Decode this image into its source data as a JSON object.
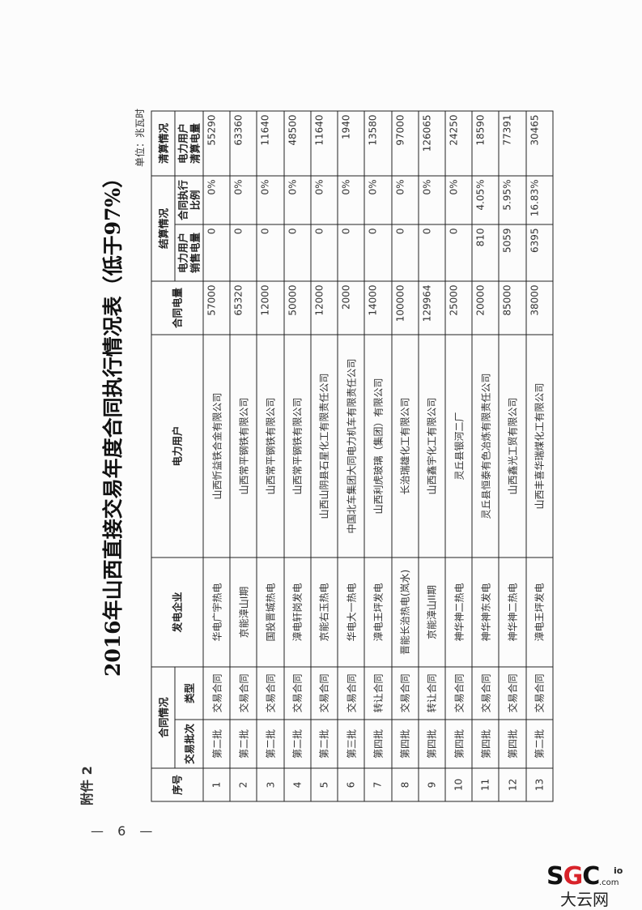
{
  "attachment_label": "附件 2",
  "page_number": "— 6 —",
  "title": "2016年山西直接交易年度合同执行情况表（低于97%）",
  "unit": "单位：兆瓦时",
  "headers": {
    "seq": "序号",
    "contract_group": "合同情况",
    "batch": "交易批次",
    "type": "类型",
    "generator": "发电企业",
    "customer": "电力用户",
    "contract_volume": "合同电量",
    "settlement_group": "结算情况",
    "sold_volume": "电力用户\n销售电量",
    "exec_ratio": "合同执行\n比例",
    "clearing_group": "清算情况",
    "cleared_volume": "电力用户\n清算电量"
  },
  "rows": [
    {
      "seq": "1",
      "batch": "第二批",
      "type": "交易合同",
      "generator": "华电广宇热电",
      "customer": "山西忻益铁合金有限公司",
      "contract": "57000",
      "sold": "0",
      "ratio": "0%",
      "cleared": "55290"
    },
    {
      "seq": "2",
      "batch": "第二批",
      "type": "交易合同",
      "generator": "京能漳山I期",
      "customer": "山西常平钢铁有限公司",
      "contract": "65320",
      "sold": "0",
      "ratio": "0%",
      "cleared": "63360"
    },
    {
      "seq": "3",
      "batch": "第二批",
      "type": "交易合同",
      "generator": "国投晋城热电",
      "customer": "山西常平钢铁有限公司",
      "contract": "12000",
      "sold": "0",
      "ratio": "0%",
      "cleared": "11640"
    },
    {
      "seq": "4",
      "batch": "第二批",
      "type": "交易合同",
      "generator": "漳电轩岗发电",
      "customer": "山西常平钢铁有限公司",
      "contract": "50000",
      "sold": "0",
      "ratio": "0%",
      "cleared": "48500"
    },
    {
      "seq": "5",
      "batch": "第二批",
      "type": "交易合同",
      "generator": "京能右玉热电",
      "customer": "山西山阴县石星化工有限责任公司",
      "contract": "12000",
      "sold": "0",
      "ratio": "0%",
      "cleared": "11640"
    },
    {
      "seq": "6",
      "batch": "第三批",
      "type": "交易合同",
      "generator": "华电大一热电",
      "customer": "中国北车集团大同电力机车有限责任公司",
      "contract": "2000",
      "sold": "0",
      "ratio": "0%",
      "cleared": "1940"
    },
    {
      "seq": "7",
      "batch": "第四批",
      "type": "转让合同",
      "generator": "漳电王坪发电",
      "customer": "山西利虎玻璃（集团）有限公司",
      "contract": "14000",
      "sold": "0",
      "ratio": "0%",
      "cleared": "13580"
    },
    {
      "seq": "8",
      "batch": "第四批",
      "type": "交易合同",
      "generator": "晋能长治热电(岚水)",
      "customer": "长治瑞雄化工有限公司",
      "contract": "100000",
      "sold": "0",
      "ratio": "0%",
      "cleared": "97000"
    },
    {
      "seq": "9",
      "batch": "第四批",
      "type": "转让合同",
      "generator": "京能漳山II期",
      "customer": "山西鑫宇化工有限公司",
      "contract": "129964",
      "sold": "0",
      "ratio": "0%",
      "cleared": "126065"
    },
    {
      "seq": "10",
      "batch": "第四批",
      "type": "交易合同",
      "generator": "神华神二热电",
      "customer": "灵丘县银河二厂",
      "contract": "25000",
      "sold": "0",
      "ratio": "0%",
      "cleared": "24250"
    },
    {
      "seq": "11",
      "batch": "第四批",
      "type": "交易合同",
      "generator": "神华神东发电",
      "customer": "灵丘县恒泰有色冶炼有限责任公司",
      "contract": "20000",
      "sold": "810",
      "ratio": "4.05%",
      "cleared": "18590"
    },
    {
      "seq": "12",
      "batch": "第四批",
      "type": "交易合同",
      "generator": "神华神二热电",
      "customer": "山西鑫光工贸有限公司",
      "contract": "85000",
      "sold": "5059",
      "ratio": "5.95%",
      "cleared": "77391"
    },
    {
      "seq": "13",
      "batch": "第二批",
      "type": "交易合同",
      "generator": "漳电王坪发电",
      "customer": "山西丰喜华瑞煤化工有限公司",
      "contract": "38000",
      "sold": "6395",
      "ratio": "16.83%",
      "cleared": "30465"
    }
  ],
  "watermark": {
    "logo_text": "SGCio",
    "domain": ".com",
    "name": "大云网",
    "accent": "#d8232a"
  }
}
